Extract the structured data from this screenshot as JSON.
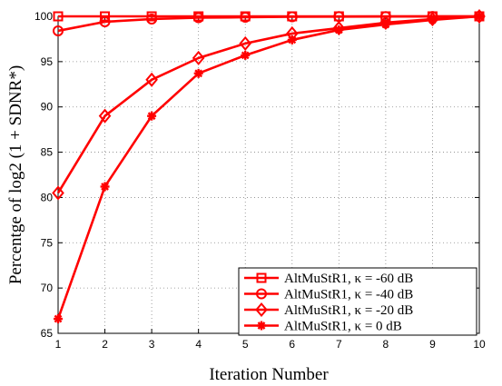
{
  "chart_data": {
    "type": "line",
    "title": "",
    "xlabel": "Iteration Number",
    "ylabel": "Percentge of log2 (1 + SDNR*)",
    "xlim": [
      1,
      10
    ],
    "ylim": [
      65,
      100
    ],
    "xticks": [
      1,
      2,
      3,
      4,
      5,
      6,
      7,
      8,
      9,
      10
    ],
    "yticks": [
      65,
      70,
      75,
      80,
      85,
      90,
      95,
      100
    ],
    "grid": true,
    "legend_position": "bottom-right",
    "line_color": "#ff0000",
    "x": [
      1,
      2,
      3,
      4,
      5,
      6,
      7,
      8,
      9,
      10
    ],
    "series": [
      {
        "name": "AltMuStR1, κ = -60 dB",
        "marker": "square",
        "values": [
          100,
          100,
          100,
          100,
          100,
          100,
          100,
          100,
          100,
          100
        ]
      },
      {
        "name": "AltMuStR1, κ = -40 dB",
        "marker": "circle",
        "values": [
          98.4,
          99.4,
          99.7,
          99.85,
          99.9,
          99.95,
          99.97,
          99.98,
          99.99,
          100
        ]
      },
      {
        "name": "AltMuStR1, κ = -20 dB",
        "marker": "diamond",
        "values": [
          80.5,
          89.0,
          93.0,
          95.4,
          97.0,
          98.1,
          98.7,
          99.3,
          99.7,
          100
        ]
      },
      {
        "name": "AltMuStR1, κ = 0 dB",
        "marker": "star",
        "values": [
          66.6,
          81.2,
          89.0,
          93.7,
          95.7,
          97.4,
          98.5,
          99.1,
          99.6,
          100
        ]
      }
    ]
  }
}
